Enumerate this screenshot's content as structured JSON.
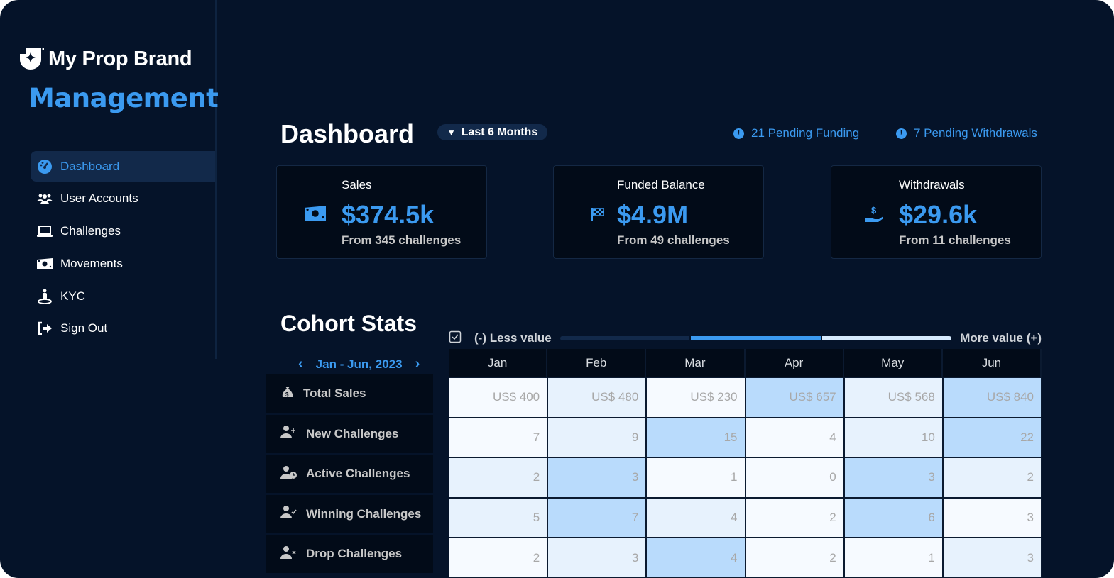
{
  "brand": {
    "name": "My Prop Brand",
    "subtitle": "Management"
  },
  "sidebar": {
    "items": [
      {
        "label": "Dashboard",
        "icon": "gauge-icon",
        "active": true
      },
      {
        "label": "User Accounts",
        "icon": "users-icon"
      },
      {
        "label": "Challenges",
        "icon": "laptop-icon"
      },
      {
        "label": "Movements",
        "icon": "money-bill-icon"
      },
      {
        "label": "KYC",
        "icon": "person-pin-icon"
      },
      {
        "label": "Sign Out",
        "icon": "sign-out-icon"
      }
    ]
  },
  "header": {
    "title": "Dashboard",
    "period": "Last 6 Months",
    "pending_funding": "21 Pending Funding",
    "pending_withdrawals": "7 Pending Withdrawals"
  },
  "cards": [
    {
      "label": "Sales",
      "value": "$374.5k",
      "sub": "From 345 challenges",
      "icon": "money-bill-icon"
    },
    {
      "label": "Funded Balance",
      "value": "$4.9M",
      "sub": "From 49 challenges",
      "icon": "checkered-flag-icon"
    },
    {
      "label": "Withdrawals",
      "value": "$29.6k",
      "sub": "From 11 challenges",
      "icon": "hand-dollar-icon"
    }
  ],
  "cohort": {
    "title": "Cohort Stats",
    "legend_less": "(-) Less value",
    "legend_more": "More value (+)",
    "legend_colors": [
      "#12294a",
      "#3b9af0",
      "#d6eafd"
    ],
    "range": "Jan - Jun, 2023",
    "months": [
      "Jan",
      "Feb",
      "Mar",
      "Apr",
      "May",
      "Jun"
    ],
    "rows": [
      {
        "label": "Total Sales",
        "icon": "money-bag-icon",
        "values": [
          "US$ 400",
          "US$ 480",
          "US$ 230",
          "US$ 657",
          "US$ 568",
          "US$ 840"
        ],
        "levels": [
          0,
          1,
          0,
          2,
          1,
          2
        ]
      },
      {
        "label": "New Challenges",
        "icon": "user-plus-icon",
        "values": [
          "7",
          "9",
          "15",
          "4",
          "10",
          "22"
        ],
        "levels": [
          0,
          1,
          2,
          0,
          1,
          2
        ]
      },
      {
        "label": "Active Challenges",
        "icon": "user-clock-icon",
        "values": [
          "2",
          "3",
          "1",
          "0",
          "3",
          "2"
        ],
        "levels": [
          1,
          2,
          0,
          0,
          2,
          1
        ]
      },
      {
        "label": "Winning Challenges",
        "icon": "user-check-icon",
        "values": [
          "5",
          "7",
          "4",
          "2",
          "6",
          "3"
        ],
        "levels": [
          1,
          2,
          1,
          0,
          2,
          0
        ]
      },
      {
        "label": "Drop Challenges",
        "icon": "user-xmark-icon",
        "values": [
          "2",
          "3",
          "4",
          "2",
          "1",
          "3"
        ],
        "levels": [
          0,
          1,
          2,
          0,
          0,
          1
        ]
      }
    ]
  }
}
